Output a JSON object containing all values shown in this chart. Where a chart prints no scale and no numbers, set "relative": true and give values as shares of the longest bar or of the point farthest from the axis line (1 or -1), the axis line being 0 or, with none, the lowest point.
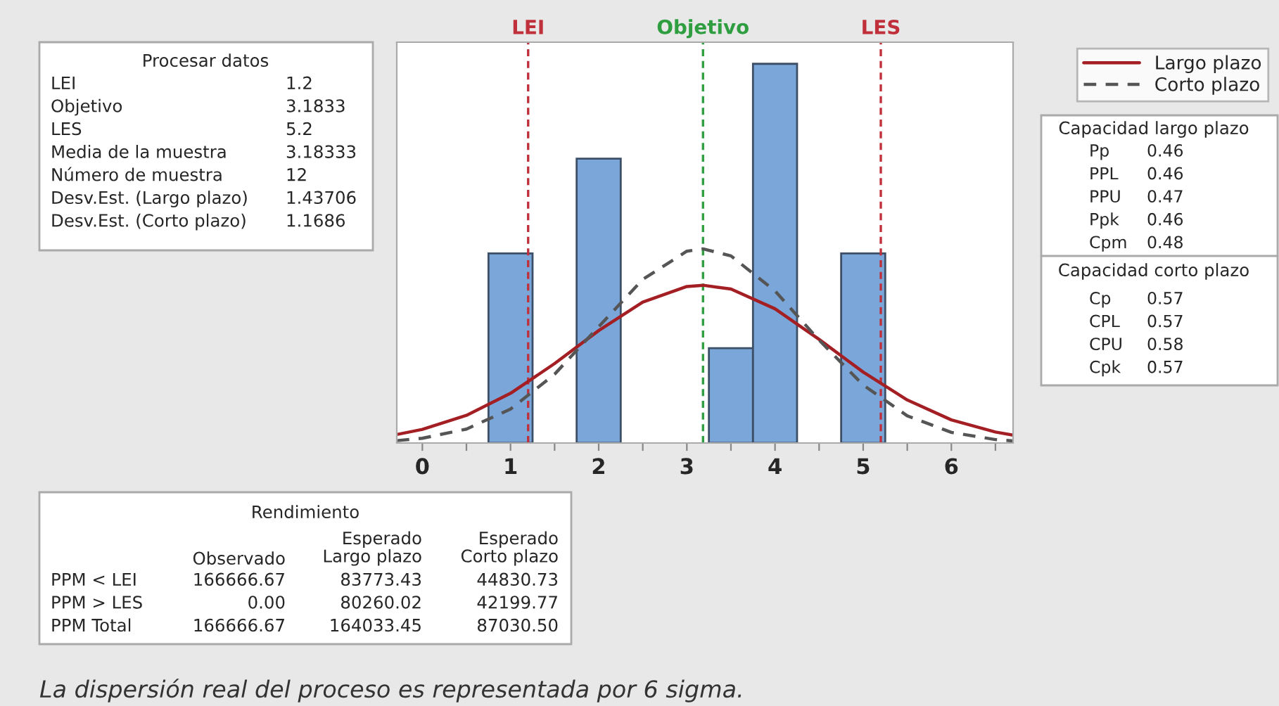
{
  "chart_data": {
    "type": "histogram",
    "relative": true,
    "bins": [
      0.75,
      1.25,
      1.75,
      2.25,
      2.75,
      3.25,
      3.75,
      4.25,
      4.75,
      5.25
    ],
    "values": [
      0.5,
      0,
      0.75,
      0,
      0,
      0.25,
      1,
      0,
      0.5
    ],
    "color": "#7ba6d9",
    "series": [
      {
        "name": "Largo plazo",
        "type": "line",
        "color": "#a31f24",
        "line_style": "solid",
        "x": [
          -0.29,
          0,
          0.5,
          1,
          1.5,
          2,
          2.5,
          3,
          3.183,
          3.5,
          4,
          4.5,
          5,
          5.5,
          6,
          6.5,
          6.7
        ],
        "values": [
          0.0224,
          0.0358,
          0.0728,
          0.131,
          0.2095,
          0.2965,
          0.3716,
          0.4127,
          0.416,
          0.406,
          0.354,
          0.2733,
          0.187,
          0.1134,
          0.061,
          0.029,
          0.0208
        ]
      },
      {
        "name": "Corto plazo",
        "type": "line",
        "color": "#555555",
        "line_style": "dashed",
        "x": [
          -0.29,
          0,
          0.5,
          1,
          1.5,
          2,
          2.5,
          3,
          3.183,
          3.5,
          4,
          4.5,
          5,
          5.5,
          6,
          6.5,
          6.7
        ],
        "values": [
          0.0062,
          0.0125,
          0.0367,
          0.0894,
          0.1815,
          0.3067,
          0.4316,
          0.5058,
          0.512,
          0.4935,
          0.401,
          0.2713,
          0.1529,
          0.0717,
          0.028,
          0.0091,
          0.0055
        ]
      }
    ],
    "xlim": [
      -0.29,
      6.7
    ],
    "xticks": [
      0,
      {
        "value": 0.5,
        "label": null
      },
      1,
      {
        "value": 1.5,
        "label": null
      },
      2,
      {
        "value": 2.5,
        "label": null
      },
      3,
      {
        "value": 3.5,
        "label": null
      },
      4,
      {
        "value": 4.5,
        "label": null
      },
      5,
      {
        "value": 5.5,
        "label": null
      },
      6,
      {
        "value": 6.5,
        "label": null
      }
    ],
    "ref_lines": [
      {
        "axis": "x",
        "value": 1.2,
        "label": "LEI",
        "color": "#c0303a",
        "line_style": "dashed"
      },
      {
        "axis": "x",
        "value": 3.1833,
        "label": "Objetivo",
        "color": "#2e9e40",
        "line_style": "dashed"
      },
      {
        "axis": "x",
        "value": 5.2,
        "label": "LES",
        "color": "#c0303a",
        "line_style": "dashed"
      }
    ],
    "legend": "top right",
    "grid": false,
    "annotations": [
      "Procesar datos",
      "LEI",
      "Objetivo",
      "LES",
      "Media de la muestra",
      "Número de muestra",
      "Desv.Est. (Largo plazo)",
      "Desv.Est. (Corto plazo)",
      "1.2",
      "3.1833",
      "5.2",
      "3.18333",
      "12",
      "1.43706",
      "1.1686",
      "Capacidad largo plazo",
      "Pp",
      "PPL",
      "PPU",
      "Ppk",
      "Cpm",
      "0.46",
      "0.46",
      "0.47",
      "0.46",
      "0.48",
      "Capacidad corto plazo",
      "Cp",
      "CPL",
      "CPU",
      "Cpk",
      "0.57",
      "0.57",
      "0.58",
      "0.57",
      "Rendimiento",
      "Observado",
      "Esperado\nLargo plazo",
      "Esperado\nCorto plazo",
      "PPM < LEI",
      "PPM > LES",
      "PPM Total",
      "166666.67",
      "83773.43",
      "44830.73",
      "0.00",
      "80260.02",
      "42199.77",
      "166666.67",
      "164033.45",
      "87030.50",
      "La dispersión real del proceso es representada por 6 sigma."
    ]
  }
}
